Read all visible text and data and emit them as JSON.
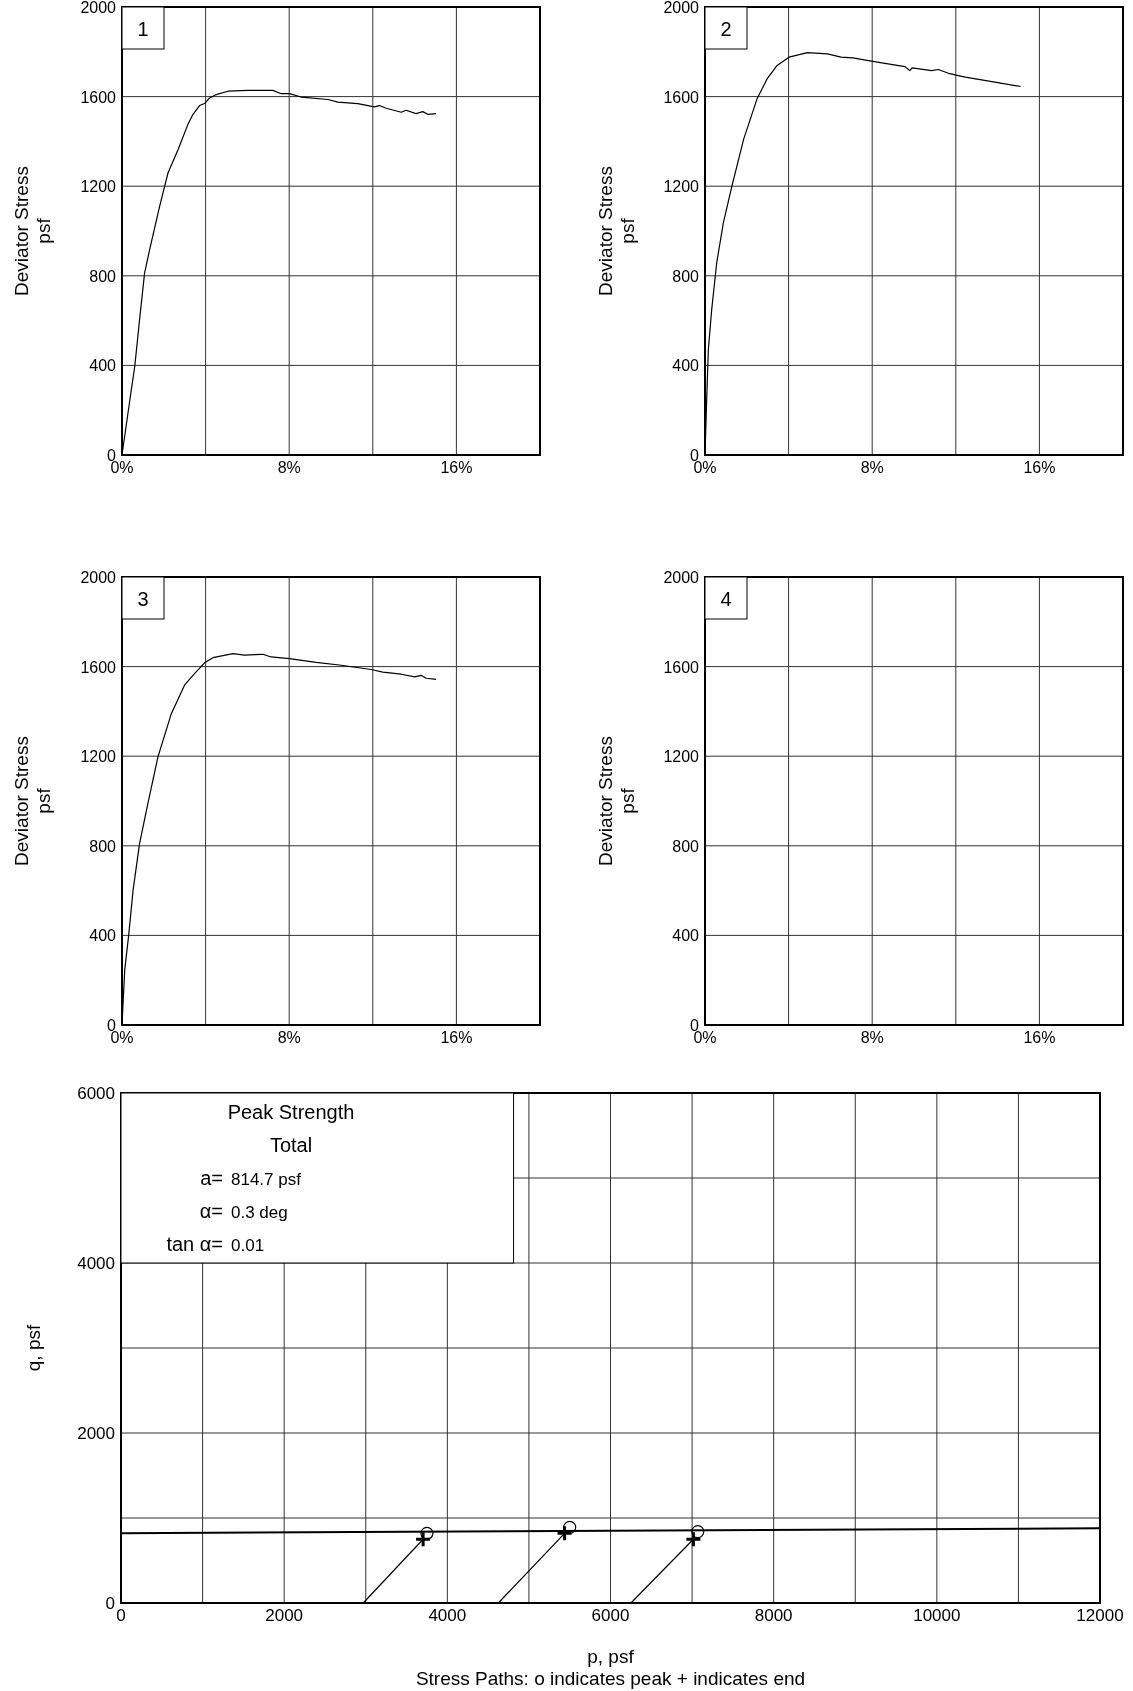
{
  "chart_data": [
    {
      "type": "line",
      "ylabel": "Deviator Stress\npsf",
      "xlim": [
        0,
        20
      ],
      "ylim": [
        0,
        2000
      ],
      "xticks": [
        {
          "value": 0,
          "label": "0%"
        },
        {
          "value": 4,
          "label": null
        },
        {
          "value": 8,
          "label": "8%"
        },
        {
          "value": 12,
          "label": null
        },
        {
          "value": 16,
          "label": "16%"
        },
        {
          "value": 20,
          "label": null
        }
      ],
      "yticks": [
        0,
        400,
        800,
        1200,
        1600,
        2000
      ],
      "grid": true,
      "marker": "none",
      "annotations": [
        "1"
      ],
      "series": [
        {
          "color": "#000000",
          "x": [
            0,
            0.41,
            0.61,
            0.84,
            1.08,
            1.32,
            1.8,
            2.2,
            2.68,
            3.15,
            3.39,
            3.71,
            3.95,
            4.19,
            4.51,
            5.07,
            6.02,
            7.22,
            7.62,
            8.01,
            8.57,
            9.85,
            10.33,
            11.28,
            12.08,
            12.32,
            12.64,
            13.36,
            13.59,
            14.07,
            14.39,
            14.63,
            15.03
          ],
          "values": [
            0,
            268,
            395,
            603,
            812,
            916,
            1110,
            1259,
            1363,
            1475,
            1520,
            1560,
            1569,
            1594,
            1609,
            1624,
            1628,
            1628,
            1613,
            1613,
            1598,
            1587,
            1575,
            1569,
            1554,
            1560,
            1548,
            1530,
            1539,
            1524,
            1533,
            1521,
            1524
          ]
        }
      ]
    },
    {
      "type": "line",
      "ylabel": "Deviator Stress\npsf",
      "xlim": [
        0,
        20
      ],
      "ylim": [
        0,
        2000
      ],
      "xticks": [
        {
          "value": 0,
          "label": "0%"
        },
        {
          "value": 4,
          "label": null
        },
        {
          "value": 8,
          "label": "8%"
        },
        {
          "value": 12,
          "label": null
        },
        {
          "value": 16,
          "label": "16%"
        },
        {
          "value": 20,
          "label": null
        }
      ],
      "yticks": [
        0,
        400,
        800,
        1200,
        1600,
        2000
      ],
      "grid": true,
      "marker": "none",
      "annotations": [
        "2"
      ],
      "series": [
        {
          "color": "#000000",
          "x": [
            0,
            0.08,
            0.16,
            0.32,
            0.56,
            0.88,
            1.29,
            1.85,
            2.49,
            2.97,
            3.45,
            4.02,
            4.9,
            5.86,
            6.51,
            7.07,
            8.03,
            9.56,
            9.8,
            9.91,
            10.84,
            11.16,
            11.65,
            12.45,
            13.73,
            15.1
          ],
          "values": [
            0,
            246,
            470,
            649,
            858,
            1037,
            1201,
            1410,
            1590,
            1679,
            1739,
            1776,
            1796,
            1791,
            1776,
            1773,
            1757,
            1734,
            1716,
            1728,
            1716,
            1721,
            1704,
            1687,
            1667,
            1645
          ]
        }
      ]
    },
    {
      "type": "line",
      "ylabel": "Deviator Stress\npsf",
      "xlim": [
        0,
        20
      ],
      "ylim": [
        0,
        2000
      ],
      "xticks": [
        {
          "value": 0,
          "label": "0%"
        },
        {
          "value": 4,
          "label": null
        },
        {
          "value": 8,
          "label": "8%"
        },
        {
          "value": 12,
          "label": null
        },
        {
          "value": 16,
          "label": "16%"
        },
        {
          "value": 20,
          "label": null
        }
      ],
      "yticks": [
        0,
        400,
        800,
        1200,
        1600,
        2000
      ],
      "grid": true,
      "marker": "none",
      "annotations": [
        "3"
      ],
      "series": [
        {
          "color": "#000000",
          "x": [
            0,
            0.13,
            0.32,
            0.53,
            0.84,
            1.24,
            1.72,
            2.36,
            2.99,
            3.47,
            3.95,
            4.35,
            5.31,
            5.86,
            6.74,
            7.13,
            8.01,
            9.29,
            10.49,
            11.92,
            12.48,
            13.36,
            14,
            14.31,
            14.55,
            15.03
          ],
          "values": [
            0,
            245,
            401,
            602,
            810,
            989,
            1197,
            1390,
            1517,
            1569,
            1617,
            1640,
            1658,
            1651,
            1655,
            1643,
            1636,
            1619,
            1606,
            1587,
            1575,
            1566,
            1554,
            1561,
            1548,
            1543
          ]
        }
      ]
    },
    {
      "type": "line",
      "ylabel": "Deviator Stress\npsf",
      "xlim": [
        0,
        20
      ],
      "ylim": [
        0,
        2000
      ],
      "xticks": [
        {
          "value": 0,
          "label": "0%"
        },
        {
          "value": 4,
          "label": null
        },
        {
          "value": 8,
          "label": "8%"
        },
        {
          "value": 12,
          "label": null
        },
        {
          "value": 16,
          "label": "16%"
        },
        {
          "value": 20,
          "label": null
        }
      ],
      "yticks": [
        0,
        400,
        800,
        1200,
        1600,
        2000
      ],
      "grid": true,
      "annotations": [
        "4"
      ]
    },
    {
      "type": "line",
      "xlabel": "p, psf",
      "ylabel": "q, psf",
      "xlim": [
        0,
        12000
      ],
      "ylim": [
        0,
        6000
      ],
      "xticks": [
        0,
        {
          "value": 1000,
          "label": null
        },
        2000,
        {
          "value": 3000,
          "label": null
        },
        4000,
        {
          "value": 5000,
          "label": null
        },
        6000,
        {
          "value": 7000,
          "label": null
        },
        8000,
        {
          "value": 9000,
          "label": null
        },
        10000,
        {
          "value": 11000,
          "label": null
        },
        12000
      ],
      "yticks": [
        0,
        {
          "value": 1000,
          "label": null
        },
        2000,
        {
          "value": 3000,
          "label": null
        },
        4000,
        {
          "value": 5000,
          "label": null
        },
        6000
      ],
      "grid": true,
      "annotations": [
        "Peak Strength",
        "Total",
        "a= 814.7 psf",
        "α= 0.3 deg",
        "tan α= 0.01",
        "Stress Paths:    o indicates peak    + indicates end"
      ],
      "series": [
        {
          "type": "line",
          "color": "#000000",
          "marker": "none",
          "x": [
            0,
            12000
          ],
          "values": [
            820,
            880
          ]
        },
        {
          "type": "line",
          "color": "#000000",
          "marker": "none",
          "x": [
            2969,
            3703
          ],
          "values": [
            0,
            750
          ]
        },
        {
          "type": "line",
          "color": "#000000",
          "marker": "none",
          "x": [
            4625,
            5437
          ],
          "values": [
            0,
            820
          ]
        },
        {
          "type": "line",
          "color": "#000000",
          "marker": "none",
          "x": [
            6250,
            7016
          ],
          "values": [
            0,
            750
          ]
        },
        {
          "type": "scatter",
          "color": "#000000",
          "marker": "circle",
          "x": [
            3750,
            5500,
            7070
          ],
          "values": [
            820,
            890,
            840
          ]
        },
        {
          "type": "scatter",
          "color": "#000000",
          "marker": "cross",
          "x": [
            3703,
            5437,
            7016
          ],
          "values": [
            750,
            820,
            750
          ]
        }
      ]
    }
  ]
}
